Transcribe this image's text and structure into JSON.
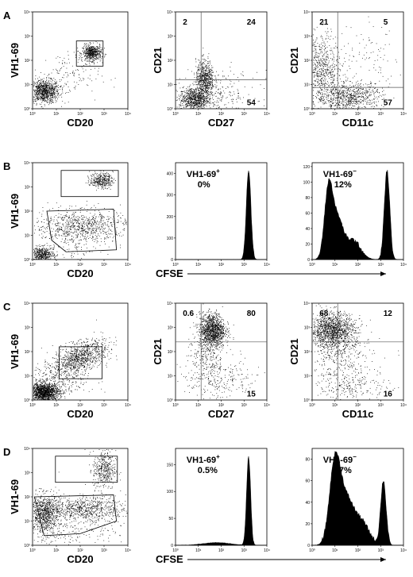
{
  "figure": {
    "panels": [
      {
        "row": "A",
        "type": "scatter",
        "xlabel": "CD20",
        "ylabel": "VH1-69",
        "has_gate": true,
        "quad_labels": null
      },
      {
        "row": "A",
        "type": "scatter",
        "xlabel": "CD27",
        "ylabel": "CD21",
        "quad_labels": {
          "ul": "2",
          "ur": "24",
          "ll": "",
          "lr": "54"
        }
      },
      {
        "row": "A",
        "type": "scatter",
        "xlabel": "CD11c",
        "ylabel": "CD21",
        "quad_labels": {
          "ul": "21",
          "ur": "5",
          "ll": "",
          "lr": "57"
        }
      },
      {
        "row": "B",
        "type": "scatter",
        "xlabel": "CD20",
        "ylabel": "VH1-69",
        "has_gate": true
      },
      {
        "row": "B",
        "type": "histogram",
        "xlabel": "CFSE",
        "label_line1": "VH1-69",
        "label_sup": "+",
        "label_line2": "0%",
        "ylim": [
          0,
          450
        ],
        "yticks": [
          0,
          100,
          200,
          300,
          400
        ]
      },
      {
        "row": "B",
        "type": "histogram",
        "label_line1": "VH1-69",
        "label_sup": "−",
        "label_line2": "12%",
        "ylim": [
          0,
          125
        ],
        "yticks": [
          0,
          20,
          40,
          60,
          80,
          100,
          120
        ]
      },
      {
        "row": "C",
        "type": "scatter",
        "xlabel": "CD20",
        "ylabel": "VH1-69",
        "has_gate": true
      },
      {
        "row": "C",
        "type": "scatter",
        "xlabel": "CD27",
        "ylabel": "CD21",
        "quad_labels": {
          "ul": "0.6",
          "ur": "80",
          "ll": "",
          "lr": "15"
        }
      },
      {
        "row": "C",
        "type": "scatter",
        "xlabel": "CD11c",
        "ylabel": "CD21",
        "quad_labels": {
          "ul": "68",
          "ur": "12",
          "ll": "",
          "lr": "16"
        }
      },
      {
        "row": "D",
        "type": "scatter",
        "xlabel": "CD20",
        "ylabel": "VH1-69",
        "has_gate": true
      },
      {
        "row": "D",
        "type": "histogram",
        "xlabel": "CFSE",
        "label_line1": "VH1-69",
        "label_sup": "+",
        "label_line2": "0.5%",
        "ylim": [
          0,
          180
        ],
        "yticks": [
          0,
          50,
          100,
          150
        ]
      },
      {
        "row": "D",
        "type": "histogram",
        "label_line1": "VH1-69",
        "label_sup": "−",
        "label_line2": "17%",
        "ylim": [
          0,
          90
        ],
        "yticks": [
          0,
          20,
          40,
          60,
          80
        ]
      }
    ],
    "row_labels": [
      "A",
      "B",
      "C",
      "D"
    ],
    "log_ticks": [
      "10⁰",
      "10¹",
      "10²",
      "10³",
      "10⁴"
    ]
  },
  "chart_data": [
    {
      "type": "scatter",
      "panel": "A1",
      "xlabel": "CD20",
      "ylabel": "VH1-69",
      "xscale": "log",
      "yscale": "log",
      "xlim": [
        1,
        10000
      ],
      "ylim": [
        1,
        10000
      ]
    },
    {
      "type": "scatter",
      "panel": "A2",
      "xlabel": "CD27",
      "ylabel": "CD21",
      "quadrant_percent": {
        "upper_left": 2,
        "upper_right": 24,
        "lower_right": 54
      }
    },
    {
      "type": "scatter",
      "panel": "A3",
      "xlabel": "CD11c",
      "ylabel": "CD21",
      "quadrant_percent": {
        "upper_left": 21,
        "upper_right": 5,
        "lower_right": 57
      }
    },
    {
      "type": "histogram",
      "panel": "B2",
      "xlabel": "CFSE",
      "annotation": "VH1-69+ 0%",
      "ylim": [
        0,
        450
      ]
    },
    {
      "type": "histogram",
      "panel": "B3",
      "annotation": "VH1-69− 12%",
      "ylim": [
        0,
        125
      ]
    },
    {
      "type": "scatter",
      "panel": "C2",
      "xlabel": "CD27",
      "ylabel": "CD21",
      "quadrant_percent": {
        "upper_left": 0.6,
        "upper_right": 80,
        "lower_right": 15
      }
    },
    {
      "type": "scatter",
      "panel": "C3",
      "xlabel": "CD11c",
      "ylabel": "CD21",
      "quadrant_percent": {
        "upper_left": 68,
        "upper_right": 12,
        "lower_right": 16
      }
    },
    {
      "type": "histogram",
      "panel": "D2",
      "xlabel": "CFSE",
      "annotation": "VH1-69+ 0.5%",
      "ylim": [
        0,
        180
      ]
    },
    {
      "type": "histogram",
      "panel": "D3",
      "annotation": "VH1-69− 17%",
      "ylim": [
        0,
        90
      ]
    }
  ]
}
